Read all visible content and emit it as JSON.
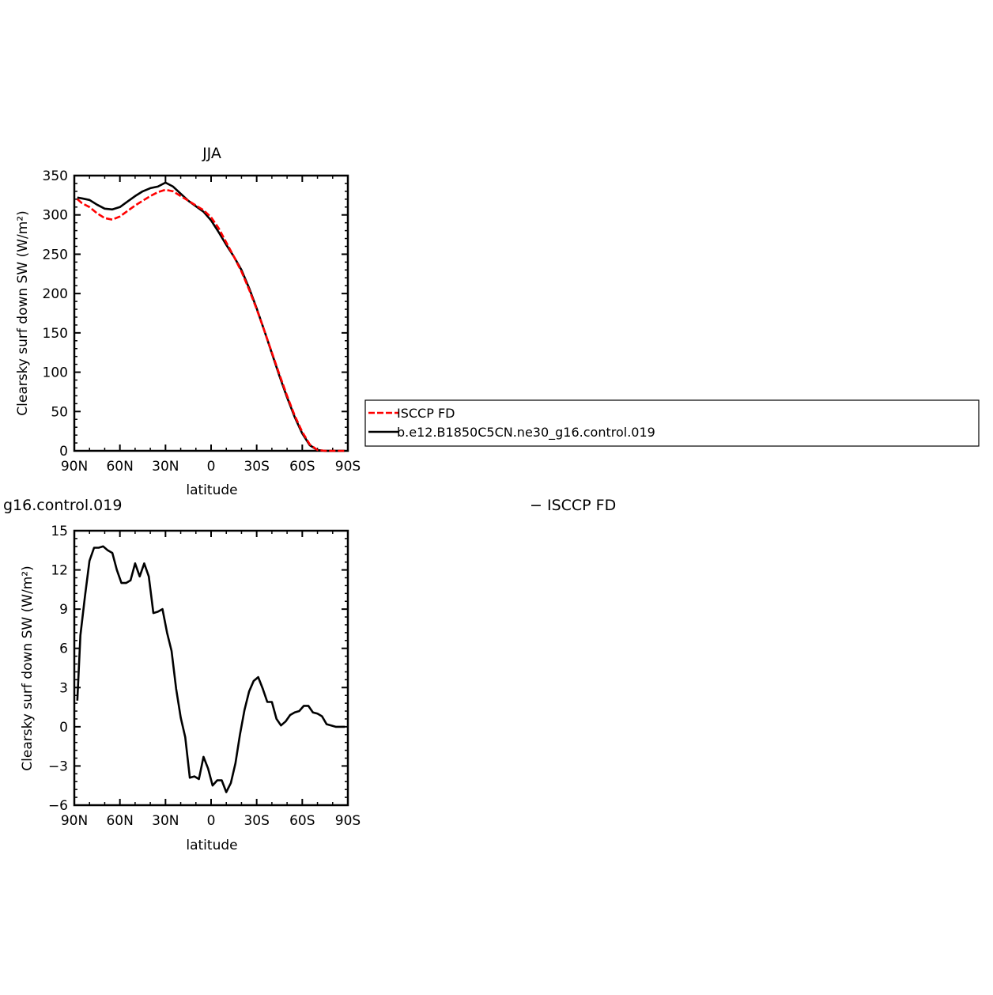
{
  "chart_data": [
    {
      "type": "line",
      "title": "JJA",
      "xlabel": "latitude",
      "ylabel": "Clearsky surf down SW (W/m²)",
      "xlim": [
        90,
        -90
      ],
      "ylim": [
        0,
        350
      ],
      "xticks": [
        90,
        60,
        30,
        0,
        -30,
        -60,
        -90
      ],
      "xtick_labels": [
        "90N",
        "60N",
        "30N",
        "0",
        "30S",
        "60S",
        "90S"
      ],
      "yticks": [
        0,
        50,
        100,
        150,
        200,
        250,
        300,
        350
      ],
      "ytick_labels": [
        "0",
        "50",
        "100",
        "150",
        "200",
        "250",
        "300",
        "350"
      ],
      "legend": {
        "placement": "right",
        "entries": [
          "ISCCP FD",
          "b.e12.B1850C5CN.ne30_g16.control.019"
        ]
      },
      "series": [
        {
          "name": "ISCCP FD",
          "color": "#ff0000",
          "dash": "dashed",
          "x": [
            88,
            85,
            80,
            75,
            70,
            65,
            60,
            55,
            50,
            45,
            40,
            35,
            30,
            25,
            20,
            15,
            10,
            5,
            0,
            -5,
            -10,
            -15,
            -20,
            -25,
            -30,
            -35,
            -40,
            -45,
            -50,
            -55,
            -60,
            -65,
            -70,
            -75,
            -80,
            -85,
            -88
          ],
          "y": [
            320,
            315,
            310,
            302,
            296,
            294,
            298,
            305,
            312,
            318,
            324,
            329,
            332,
            330,
            324,
            318,
            312,
            306,
            297,
            283,
            265,
            247,
            228,
            205,
            180,
            153,
            125,
            97,
            70,
            45,
            24,
            8,
            1,
            0,
            0,
            0,
            0
          ]
        },
        {
          "name": "b.e12.B1850C5CN.ne30_g16.control.019",
          "color": "#000000",
          "dash": "solid",
          "x": [
            88,
            85,
            80,
            75,
            70,
            65,
            60,
            55,
            50,
            45,
            40,
            35,
            30,
            25,
            20,
            15,
            10,
            5,
            0,
            -5,
            -10,
            -15,
            -20,
            -25,
            -30,
            -35,
            -40,
            -45,
            -50,
            -55,
            -60,
            -65,
            -70,
            -75,
            -80,
            -85,
            -88
          ],
          "y": [
            322,
            321,
            319,
            313,
            308,
            307,
            310,
            317,
            324,
            330,
            334,
            336,
            341,
            336,
            327,
            318,
            311,
            304,
            293,
            278,
            262,
            247,
            230,
            207,
            181,
            153,
            124,
            95,
            68,
            43,
            22,
            7,
            1,
            0,
            0,
            0,
            0
          ]
        }
      ]
    },
    {
      "type": "line",
      "title": "g16.control.019",
      "title2": "− ISCCP FD",
      "xlabel": "latitude",
      "ylabel": "Clearsky surf down SW (W/m²)",
      "xlim": [
        90,
        -90
      ],
      "ylim": [
        -6,
        15
      ],
      "xticks": [
        90,
        60,
        30,
        0,
        -30,
        -60,
        -90
      ],
      "xtick_labels": [
        "90N",
        "60N",
        "30N",
        "0",
        "30S",
        "60S",
        "90S"
      ],
      "yticks": [
        -6,
        -3,
        0,
        3,
        6,
        9,
        12,
        15
      ],
      "ytick_labels": [
        "−6",
        "−3",
        "0",
        "3",
        "6",
        "9",
        "12",
        "15"
      ],
      "series": [
        {
          "color": "#000000",
          "dash": "solid",
          "x": [
            88,
            86,
            83,
            80,
            77,
            74,
            71,
            68,
            65,
            62,
            59,
            56,
            53,
            50,
            47,
            44,
            41,
            38,
            35,
            32,
            29,
            26,
            23,
            20,
            17,
            14,
            11,
            8,
            5,
            2,
            -1,
            -4,
            -7,
            -10,
            -13,
            -16,
            -19,
            -22,
            -25,
            -28,
            -31,
            -34,
            -37,
            -40,
            -43,
            -46,
            -49,
            -52,
            -55,
            -58,
            -61,
            -64,
            -67,
            -70,
            -73,
            -76,
            -79,
            -82,
            -85,
            -88
          ],
          "y": [
            2.0,
            7.0,
            10.0,
            12.7,
            13.7,
            13.7,
            13.8,
            13.5,
            13.3,
            12.0,
            11.0,
            11.0,
            11.2,
            12.5,
            11.5,
            12.5,
            11.5,
            8.7,
            8.8,
            9.0,
            7.2,
            5.8,
            2.9,
            0.7,
            -0.8,
            -3.9,
            -3.8,
            -4.0,
            -2.3,
            -3.2,
            -4.5,
            -4.1,
            -4.1,
            -5.0,
            -4.3,
            -2.8,
            -0.6,
            1.3,
            2.7,
            3.5,
            3.8,
            2.9,
            1.9,
            1.9,
            0.6,
            0.1,
            0.4,
            0.9,
            1.1,
            1.2,
            1.6,
            1.6,
            1.1,
            1.0,
            0.8,
            0.2,
            0.1,
            0.0,
            0.0,
            0.0
          ]
        }
      ]
    }
  ]
}
